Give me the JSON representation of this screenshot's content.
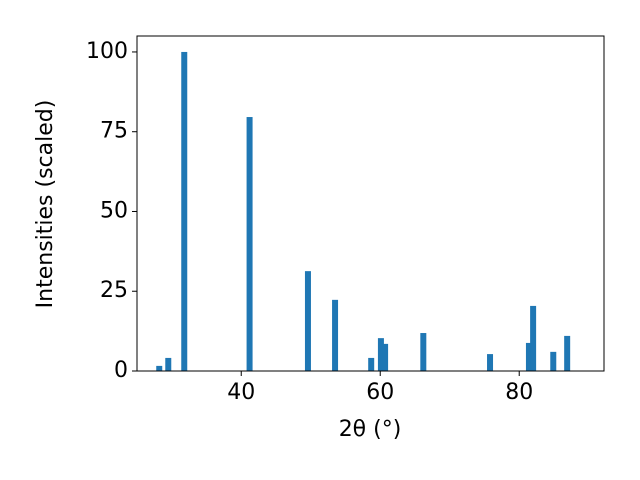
{
  "chart_data": {
    "type": "bar",
    "xlabel": "2θ (°)",
    "ylabel": "Intensities (scaled)",
    "x": [
      28.2,
      29.5,
      31.8,
      41.2,
      49.6,
      53.5,
      58.7,
      60.1,
      60.7,
      66.2,
      75.8,
      81.4,
      82.0,
      84.9,
      86.9
    ],
    "values": [
      1.6,
      4.1,
      100,
      79.6,
      31.3,
      22.3,
      4.1,
      10.3,
      8.5,
      11.9,
      5.3,
      8.8,
      20.4,
      6.0,
      11.0
    ],
    "color": "#1f77b4",
    "xlim": [
      25.0,
      92.2
    ],
    "ylim": [
      0,
      105
    ],
    "xticks": [
      40,
      60,
      80
    ],
    "yticks": [
      0,
      25,
      50,
      75,
      100
    ],
    "grid": false
  }
}
